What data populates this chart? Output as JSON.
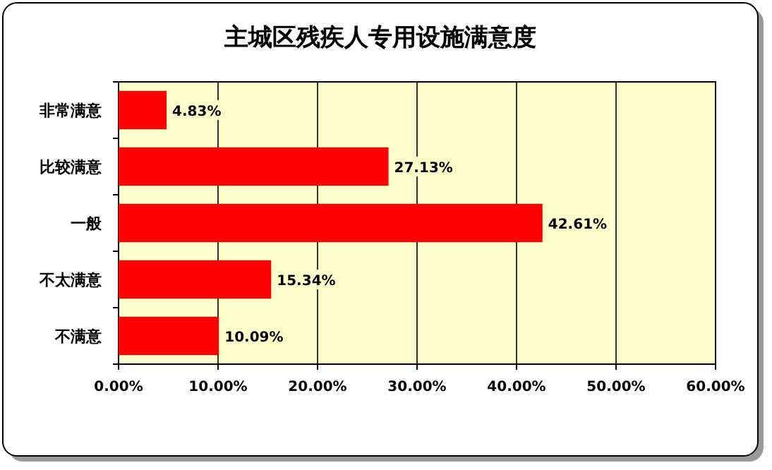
{
  "chart_data": {
    "type": "bar",
    "orientation": "horizontal",
    "title": "主城区残疾人专用设施满意度",
    "categories": [
      "非常满意",
      "比较满意",
      "一般",
      "不太满意",
      "不满意"
    ],
    "values": [
      4.83,
      27.13,
      42.61,
      15.34,
      10.09
    ],
    "value_labels": [
      "4.83%",
      "27.13%",
      "42.61%",
      "15.34%",
      "10.09%"
    ],
    "color": "#ff0000",
    "xlim": [
      0,
      60
    ],
    "xticks": [
      {
        "value": 0,
        "label": "0.00%"
      },
      {
        "value": 10,
        "label": "10.00%"
      },
      {
        "value": 20,
        "label": "20.00%"
      },
      {
        "value": 30,
        "label": "30.00%"
      },
      {
        "value": 40,
        "label": "40.00%"
      },
      {
        "value": 50,
        "label": "50.00%"
      },
      {
        "value": 60,
        "label": "60.00%"
      }
    ],
    "grid": "x"
  }
}
